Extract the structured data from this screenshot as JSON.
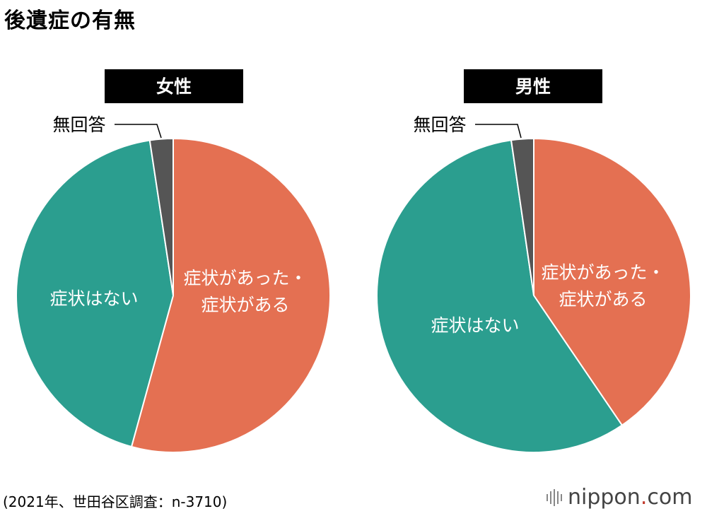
{
  "title": "後遺症の有無",
  "source_note": "(2021年、世田谷区調査：n-3710)",
  "brand": {
    "name": "nippon",
    "dot": ".",
    "tld": "com"
  },
  "colors": {
    "symptom": "#e47052",
    "no_symptom": "#2b9e8f",
    "no_answer": "#555555"
  },
  "chart_data": [
    {
      "type": "pie",
      "title": "女性",
      "slices": [
        {
          "label": "症状があった・症状がある",
          "value": 54.5,
          "color": "#e47052"
        },
        {
          "label": "症状はない",
          "value": 43.5,
          "color": "#2b9e8f"
        },
        {
          "label": "無回答",
          "value": 2.4,
          "color": "#555555"
        }
      ]
    },
    {
      "type": "pie",
      "title": "男性",
      "slices": [
        {
          "label": "症状があった・症状がある",
          "value": 40.5,
          "color": "#e47052"
        },
        {
          "label": "症状はない",
          "value": 57.2,
          "color": "#2b9e8f"
        },
        {
          "label": "無回答",
          "value": 2.3,
          "color": "#555555"
        }
      ]
    }
  ]
}
